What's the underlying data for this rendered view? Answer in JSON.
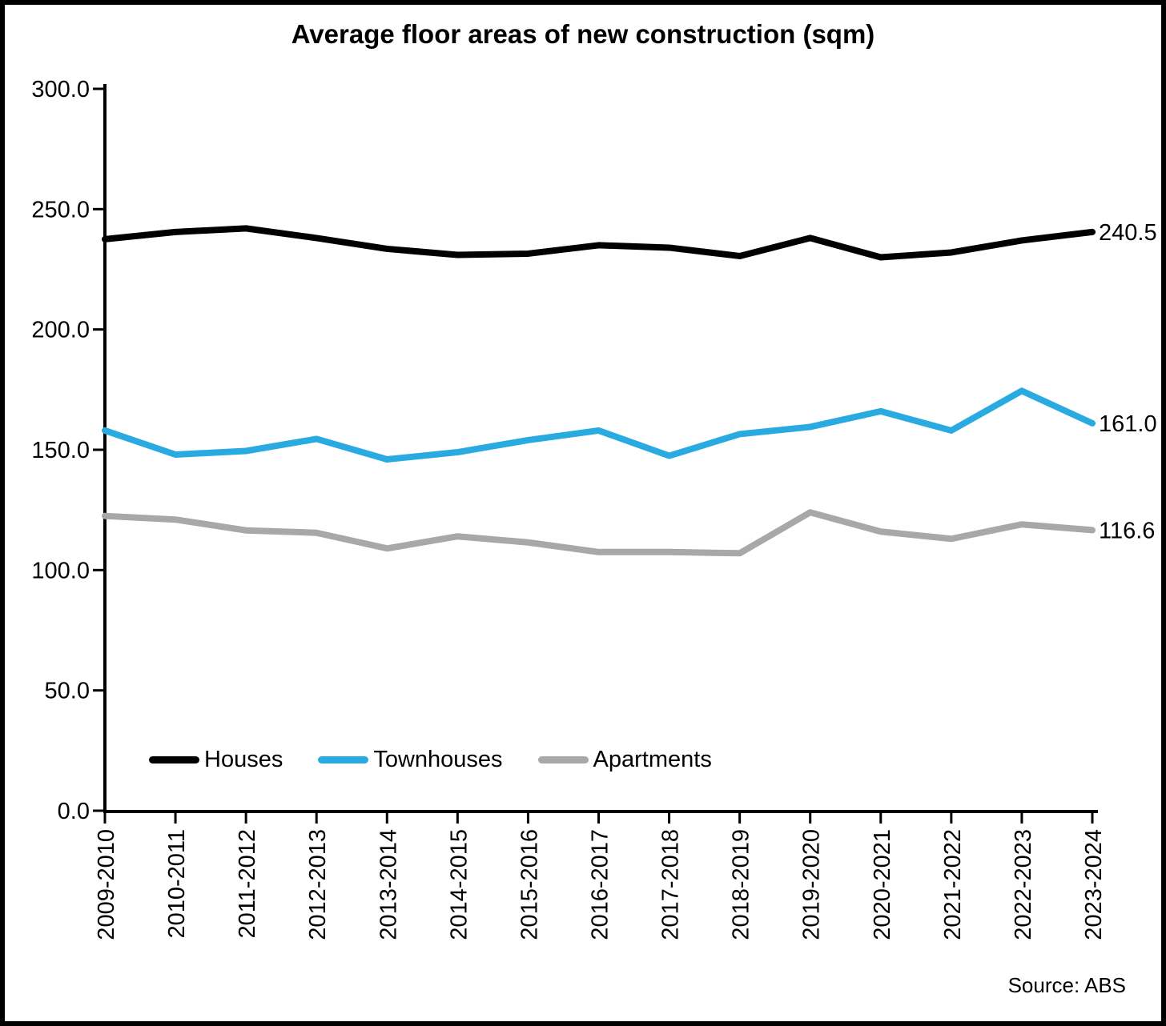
{
  "figure": {
    "title": "Average floor areas of new construction (sqm)",
    "source": "Source: ABS"
  },
  "chart_data": {
    "type": "line",
    "title": "Average floor areas of new construction (sqm)",
    "xlabel": "",
    "ylabel": "",
    "ylim": [
      0,
      300
    ],
    "y_ticks": [
      "300.0",
      "250.0",
      "200.0",
      "150.0",
      "100.0",
      "50.0",
      "0.0"
    ],
    "grid": false,
    "legend_position": "bottom-inside",
    "categories": [
      "2009-2010",
      "2010-2011",
      "2011-2012",
      "2012-2013",
      "2013-2014",
      "2014-2015",
      "2015-2016",
      "2016-2017",
      "2017-2018",
      "2018-2019",
      "2019-2020",
      "2020-2021",
      "2021-2022",
      "2022-2023",
      "2023-2024"
    ],
    "series": [
      {
        "name": "Houses",
        "color": "#000000",
        "end_label": "240.5",
        "values": [
          237.5,
          240.5,
          242.0,
          238.0,
          233.5,
          231.0,
          231.5,
          235.0,
          234.0,
          230.5,
          238.0,
          230.0,
          232.0,
          237.0,
          240.5
        ]
      },
      {
        "name": "Townhouses",
        "color": "#29ABE2",
        "end_label": "161.0",
        "values": [
          158.0,
          148.0,
          149.5,
          154.5,
          146.0,
          149.0,
          154.0,
          158.0,
          147.5,
          156.5,
          159.5,
          166.0,
          158.0,
          174.5,
          161.0
        ]
      },
      {
        "name": "Apartments",
        "color": "#A8A8A8",
        "end_label": "116.6",
        "values": [
          122.5,
          121.0,
          116.5,
          115.5,
          109.0,
          114.0,
          111.5,
          107.5,
          107.5,
          107.0,
          124.0,
          116.0,
          113.0,
          119.0,
          116.6
        ]
      }
    ]
  }
}
